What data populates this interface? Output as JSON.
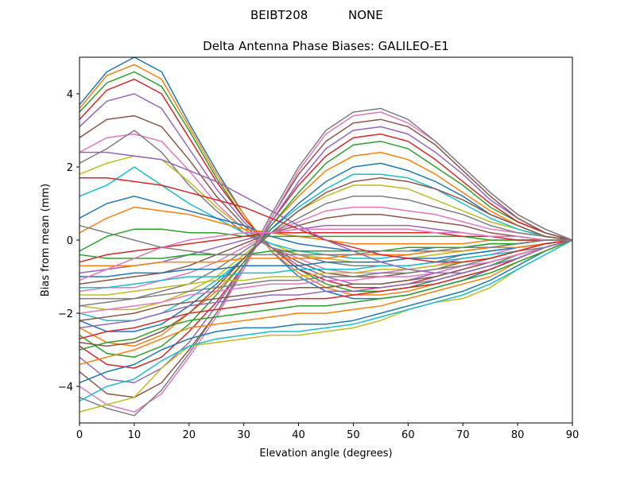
{
  "chart_data": {
    "type": "line",
    "suptitle_left": "BEIBT208",
    "suptitle_right": "NONE",
    "title": "Delta Antenna Phase Biases: GALILEO-E1",
    "xlabel": "Elevation angle (degrees)",
    "ylabel": "Bias from mean (mm)",
    "xlim": [
      0,
      90
    ],
    "ylim": [
      -5,
      5
    ],
    "xticks": [
      0,
      10,
      20,
      30,
      40,
      50,
      60,
      70,
      80,
      90
    ],
    "yticks": [
      -4,
      -2,
      0,
      2,
      4
    ],
    "x": [
      0,
      5,
      10,
      15,
      20,
      25,
      30,
      35,
      40,
      45,
      50,
      55,
      60,
      65,
      70,
      75,
      80,
      85,
      90
    ],
    "series": [
      {
        "name": "s1",
        "values": [
          3.7,
          4.6,
          5.0,
          4.6,
          3.2,
          1.9,
          0.7,
          -0.3,
          -1.0,
          -1.4,
          -1.6,
          -1.6,
          -1.5,
          -1.3,
          -1.1,
          -0.8,
          -0.5,
          -0.2,
          0.0
        ]
      },
      {
        "name": "s2",
        "values": [
          3.6,
          4.5,
          4.8,
          4.4,
          3.1,
          1.8,
          0.7,
          -0.3,
          -0.9,
          -1.3,
          -1.5,
          -1.5,
          -1.4,
          -1.2,
          -1.0,
          -0.8,
          -0.5,
          -0.2,
          0.0
        ]
      },
      {
        "name": "s3",
        "values": [
          3.5,
          4.3,
          4.6,
          4.2,
          3.0,
          1.7,
          0.6,
          -0.2,
          -0.8,
          -1.2,
          -1.4,
          -1.4,
          -1.3,
          -1.1,
          -0.9,
          -0.7,
          -0.4,
          -0.2,
          0.0
        ]
      },
      {
        "name": "s4",
        "values": [
          3.3,
          4.1,
          4.4,
          4.0,
          2.8,
          1.6,
          0.6,
          -0.2,
          -0.8,
          -1.1,
          -1.3,
          -1.3,
          -1.2,
          -1.0,
          -0.8,
          -0.6,
          -0.4,
          -0.2,
          0.0
        ]
      },
      {
        "name": "s5",
        "values": [
          3.1,
          3.8,
          4.0,
          3.6,
          2.5,
          1.4,
          0.5,
          -0.2,
          -0.7,
          -1.0,
          -1.2,
          -1.2,
          -1.1,
          -0.9,
          -0.7,
          -0.5,
          -0.3,
          -0.1,
          0.0
        ]
      },
      {
        "name": "s6",
        "values": [
          2.8,
          3.3,
          3.4,
          3.1,
          2.2,
          1.2,
          0.4,
          -0.2,
          -0.6,
          -0.9,
          -1.0,
          -1.0,
          -0.9,
          -0.8,
          -0.6,
          -0.5,
          -0.3,
          -0.1,
          0.0
        ]
      },
      {
        "name": "s7",
        "values": [
          2.4,
          2.8,
          2.9,
          2.7,
          1.9,
          1.0,
          0.3,
          -0.2,
          -0.5,
          -0.8,
          -0.9,
          -0.9,
          -0.8,
          -0.7,
          -0.5,
          -0.4,
          -0.2,
          -0.1,
          0.0
        ]
      },
      {
        "name": "s8",
        "values": [
          2.1,
          2.5,
          3.0,
          2.4,
          1.5,
          0.8,
          0.2,
          -0.2,
          -0.4,
          -0.6,
          -0.7,
          -0.7,
          -0.7,
          -0.6,
          -0.4,
          -0.3,
          -0.2,
          -0.1,
          0.0
        ]
      },
      {
        "name": "s9",
        "values": [
          1.8,
          2.1,
          2.3,
          2.2,
          1.6,
          0.9,
          0.3,
          -0.1,
          -0.4,
          -0.5,
          -0.6,
          -0.6,
          -0.5,
          -0.4,
          -0.3,
          -0.2,
          -0.1,
          0.0,
          0.0
        ]
      },
      {
        "name": "s10",
        "values": [
          1.2,
          1.5,
          2.0,
          1.5,
          1.0,
          0.6,
          0.2,
          -0.1,
          -0.3,
          -0.4,
          -0.5,
          -0.5,
          -0.4,
          -0.3,
          -0.3,
          -0.2,
          -0.1,
          0.0,
          0.0
        ]
      },
      {
        "name": "s11",
        "values": [
          0.6,
          1.0,
          1.2,
          1.0,
          0.8,
          0.6,
          0.4,
          0.1,
          -0.1,
          -0.2,
          -0.3,
          -0.3,
          -0.3,
          -0.2,
          -0.2,
          -0.1,
          -0.1,
          0.0,
          0.0
        ]
      },
      {
        "name": "s12",
        "values": [
          0.2,
          0.6,
          0.9,
          0.8,
          0.7,
          0.5,
          0.3,
          0.2,
          0.1,
          0.0,
          -0.1,
          -0.1,
          -0.1,
          -0.1,
          -0.1,
          0.0,
          0.0,
          0.0,
          0.0
        ]
      },
      {
        "name": "s13",
        "values": [
          -0.3,
          0.1,
          0.3,
          0.3,
          0.2,
          0.2,
          0.1,
          0.1,
          0.1,
          0.1,
          0.1,
          0.1,
          0.1,
          0.1,
          0.1,
          0.0,
          0.0,
          0.0,
          0.0
        ]
      },
      {
        "name": "s14",
        "values": [
          -0.6,
          -0.4,
          -0.3,
          -0.2,
          -0.1,
          0.0,
          0.1,
          0.2,
          0.2,
          0.2,
          0.2,
          0.2,
          0.2,
          0.2,
          0.1,
          0.1,
          0.0,
          0.0,
          0.0
        ]
      },
      {
        "name": "s15",
        "values": [
          -0.9,
          -0.8,
          -0.7,
          -0.6,
          -0.4,
          -0.2,
          0.0,
          0.2,
          0.3,
          0.4,
          0.4,
          0.4,
          0.4,
          0.3,
          0.2,
          0.1,
          0.1,
          0.0,
          0.0
        ]
      },
      {
        "name": "s16",
        "values": [
          -1.2,
          -1.1,
          -1.0,
          -0.9,
          -0.7,
          -0.4,
          -0.1,
          0.2,
          0.4,
          0.6,
          0.7,
          0.7,
          0.6,
          0.5,
          0.4,
          0.2,
          0.1,
          0.0,
          0.0
        ]
      },
      {
        "name": "s17",
        "values": [
          -1.4,
          -1.3,
          -1.3,
          -1.1,
          -0.9,
          -0.6,
          -0.2,
          0.2,
          0.5,
          0.8,
          0.9,
          0.9,
          0.8,
          0.7,
          0.5,
          0.3,
          0.2,
          0.1,
          0.0
        ]
      },
      {
        "name": "s18",
        "values": [
          -1.6,
          -1.6,
          -1.6,
          -1.4,
          -1.2,
          -0.8,
          -0.3,
          0.2,
          0.6,
          1.0,
          1.2,
          1.2,
          1.1,
          0.9,
          0.7,
          0.4,
          0.2,
          0.1,
          0.0
        ]
      },
      {
        "name": "s19",
        "values": [
          -1.8,
          -1.9,
          -1.9,
          -1.7,
          -1.4,
          -1.0,
          -0.4,
          0.2,
          0.8,
          1.2,
          1.5,
          1.5,
          1.4,
          1.1,
          0.8,
          0.5,
          0.3,
          0.1,
          0.0
        ]
      },
      {
        "name": "s20",
        "values": [
          -2.0,
          -2.2,
          -2.2,
          -2.0,
          -1.6,
          -1.1,
          -0.5,
          0.3,
          0.9,
          1.4,
          1.8,
          1.8,
          1.7,
          1.4,
          1.0,
          0.6,
          0.3,
          0.1,
          0.0
        ]
      },
      {
        "name": "s21",
        "values": [
          -2.2,
          -2.5,
          -2.5,
          -2.3,
          -1.8,
          -1.2,
          -0.5,
          0.3,
          1.0,
          1.6,
          2.0,
          2.1,
          1.9,
          1.6,
          1.2,
          0.7,
          0.4,
          0.1,
          0.0
        ]
      },
      {
        "name": "s22",
        "values": [
          -2.4,
          -2.8,
          -2.9,
          -2.6,
          -2.0,
          -1.4,
          -0.6,
          0.4,
          1.2,
          1.9,
          2.3,
          2.4,
          2.2,
          1.8,
          1.3,
          0.8,
          0.4,
          0.1,
          0.0
        ]
      },
      {
        "name": "s23",
        "values": [
          -2.6,
          -3.1,
          -3.2,
          -2.9,
          -2.3,
          -1.5,
          -0.6,
          0.4,
          1.3,
          2.1,
          2.6,
          2.7,
          2.5,
          2.0,
          1.5,
          0.9,
          0.5,
          0.2,
          0.0
        ]
      },
      {
        "name": "s24",
        "values": [
          -2.9,
          -3.4,
          -3.5,
          -3.2,
          -2.5,
          -1.7,
          -0.7,
          0.5,
          1.5,
          2.3,
          2.8,
          2.9,
          2.7,
          2.2,
          1.6,
          1.0,
          0.5,
          0.2,
          0.0
        ]
      },
      {
        "name": "s25",
        "values": [
          -3.2,
          -3.8,
          -3.9,
          -3.5,
          -2.8,
          -1.8,
          -0.7,
          0.5,
          1.6,
          2.5,
          3.0,
          3.1,
          2.9,
          2.4,
          1.8,
          1.1,
          0.6,
          0.2,
          0.0
        ]
      },
      {
        "name": "s26",
        "values": [
          -3.6,
          -4.2,
          -4.3,
          -3.9,
          -3.0,
          -2.0,
          -0.8,
          0.6,
          1.8,
          2.7,
          3.2,
          3.3,
          3.1,
          2.6,
          1.9,
          1.2,
          0.6,
          0.2,
          0.0
        ]
      },
      {
        "name": "s27",
        "values": [
          -4.0,
          -4.5,
          -4.7,
          -4.2,
          -3.2,
          -2.1,
          -0.8,
          0.6,
          1.9,
          2.9,
          3.4,
          3.5,
          3.2,
          2.7,
          2.0,
          1.3,
          0.7,
          0.3,
          0.0
        ]
      },
      {
        "name": "s28",
        "values": [
          -4.3,
          -4.6,
          -4.8,
          -4.1,
          -3.1,
          -2.0,
          -0.7,
          0.7,
          2.0,
          3.0,
          3.5,
          3.6,
          3.3,
          2.7,
          2.0,
          1.3,
          0.7,
          0.3,
          0.0
        ]
      },
      {
        "name": "s29",
        "values": [
          -4.7,
          -4.5,
          -4.3,
          -3.5,
          -2.9,
          -2.8,
          -2.7,
          -2.6,
          -2.6,
          -2.5,
          -2.4,
          -2.2,
          -1.9,
          -1.7,
          -1.6,
          -1.3,
          -0.8,
          -0.4,
          0.0
        ]
      },
      {
        "name": "s30",
        "values": [
          -4.4,
          -4.0,
          -3.8,
          -3.3,
          -2.9,
          -2.7,
          -2.6,
          -2.5,
          -2.5,
          -2.4,
          -2.3,
          -2.1,
          -1.9,
          -1.7,
          -1.5,
          -1.2,
          -0.8,
          -0.4,
          0.0
        ]
      },
      {
        "name": "s31",
        "values": [
          -3.9,
          -3.6,
          -3.4,
          -3.0,
          -2.7,
          -2.5,
          -2.4,
          -2.4,
          -2.3,
          -2.3,
          -2.2,
          -2.0,
          -1.8,
          -1.6,
          -1.4,
          -1.1,
          -0.7,
          -0.3,
          0.0
        ]
      },
      {
        "name": "s32",
        "values": [
          -3.4,
          -3.2,
          -3.0,
          -2.7,
          -2.4,
          -2.3,
          -2.2,
          -2.1,
          -2.0,
          -2.0,
          -1.9,
          -1.8,
          -1.6,
          -1.4,
          -1.2,
          -1.0,
          -0.6,
          -0.3,
          0.0
        ]
      },
      {
        "name": "s33",
        "values": [
          -3.0,
          -2.8,
          -2.7,
          -2.4,
          -2.2,
          -2.1,
          -2.0,
          -1.9,
          -1.8,
          -1.8,
          -1.7,
          -1.6,
          -1.5,
          -1.3,
          -1.1,
          -0.9,
          -0.6,
          -0.3,
          0.0
        ]
      },
      {
        "name": "s34",
        "values": [
          -2.7,
          -2.5,
          -2.4,
          -2.2,
          -2.0,
          -1.9,
          -1.8,
          -1.7,
          -1.6,
          -1.6,
          -1.5,
          -1.4,
          -1.3,
          -1.2,
          -1.0,
          -0.8,
          -0.5,
          -0.2,
          0.0
        ]
      },
      {
        "name": "s35",
        "values": [
          -2.4,
          -2.3,
          -2.2,
          -2.0,
          -1.8,
          -1.7,
          -1.6,
          -1.5,
          -1.5,
          -1.4,
          -1.4,
          -1.3,
          -1.2,
          -1.1,
          -0.9,
          -0.7,
          -0.5,
          -0.2,
          0.0
        ]
      },
      {
        "name": "s36",
        "values": [
          -2.2,
          -2.1,
          -2.0,
          -1.8,
          -1.7,
          -1.6,
          -1.5,
          -1.4,
          -1.3,
          -1.3,
          -1.2,
          -1.2,
          -1.1,
          -1.0,
          -0.8,
          -0.6,
          -0.4,
          -0.2,
          0.0
        ]
      },
      {
        "name": "s37",
        "values": [
          -2.0,
          -1.9,
          -1.8,
          -1.7,
          -1.5,
          -1.4,
          -1.3,
          -1.2,
          -1.2,
          -1.1,
          -1.1,
          -1.0,
          -1.0,
          -0.9,
          -0.7,
          -0.6,
          -0.4,
          -0.2,
          0.0
        ]
      },
      {
        "name": "s38",
        "values": [
          -1.8,
          -1.7,
          -1.6,
          -1.5,
          -1.4,
          -1.3,
          -1.2,
          -1.1,
          -1.1,
          -1.0,
          -1.0,
          -0.9,
          -0.9,
          -0.8,
          -0.7,
          -0.5,
          -0.3,
          -0.2,
          0.0
        ]
      },
      {
        "name": "s39",
        "values": [
          -1.5,
          -1.5,
          -1.4,
          -1.3,
          -1.2,
          -1.1,
          -1.1,
          -1.0,
          -1.0,
          -0.9,
          -0.9,
          -0.8,
          -0.8,
          -0.7,
          -0.6,
          -0.5,
          -0.3,
          -0.1,
          0.0
        ]
      },
      {
        "name": "s40",
        "values": [
          -1.3,
          -1.3,
          -1.2,
          -1.1,
          -1.0,
          -1.0,
          -0.9,
          -0.9,
          -0.8,
          -0.8,
          -0.8,
          -0.7,
          -0.7,
          -0.6,
          -0.5,
          -0.4,
          -0.3,
          -0.1,
          0.0
        ]
      },
      {
        "name": "s41",
        "values": [
          -1.0,
          -1.0,
          -0.9,
          -0.9,
          -0.8,
          -0.8,
          -0.7,
          -0.7,
          -0.7,
          -0.6,
          -0.6,
          -0.6,
          -0.5,
          -0.5,
          -0.4,
          -0.3,
          -0.2,
          -0.1,
          0.0
        ]
      },
      {
        "name": "s42",
        "values": [
          -0.7,
          -0.7,
          -0.7,
          -0.6,
          -0.6,
          -0.6,
          -0.5,
          -0.5,
          -0.5,
          -0.5,
          -0.4,
          -0.4,
          -0.4,
          -0.3,
          -0.3,
          -0.2,
          -0.2,
          -0.1,
          0.0
        ]
      },
      {
        "name": "s43",
        "values": [
          -0.4,
          -0.5,
          -0.5,
          -0.5,
          -0.4,
          -0.4,
          -0.4,
          -0.3,
          -0.3,
          -0.3,
          -0.3,
          -0.3,
          -0.2,
          -0.2,
          -0.2,
          -0.1,
          -0.1,
          0.0,
          0.0
        ]
      },
      {
        "name": "s44",
        "values": [
          1.7,
          1.7,
          1.6,
          1.5,
          1.3,
          1.1,
          0.9,
          0.6,
          0.3,
          0.0,
          -0.2,
          -0.4,
          -0.5,
          -0.6,
          -0.6,
          -0.5,
          -0.3,
          -0.1,
          0.0
        ]
      },
      {
        "name": "s45",
        "values": [
          2.4,
          2.4,
          2.3,
          2.2,
          1.9,
          1.6,
          1.2,
          0.8,
          0.4,
          0.0,
          -0.3,
          -0.6,
          -0.8,
          -0.9,
          -0.9,
          -0.7,
          -0.5,
          -0.2,
          0.0
        ]
      },
      {
        "name": "s46",
        "values": [
          -2.8,
          -2.9,
          -2.8,
          -2.5,
          -2.0,
          -1.3,
          -0.5,
          0.2,
          0.8,
          1.3,
          1.6,
          1.7,
          1.6,
          1.4,
          1.1,
          0.7,
          0.4,
          0.1,
          0.0
        ]
      },
      {
        "name": "s47",
        "values": [
          -1.1,
          -0.8,
          -0.5,
          -0.2,
          0.0,
          0.1,
          0.2,
          0.2,
          0.3,
          0.3,
          0.3,
          0.3,
          0.3,
          0.2,
          0.2,
          0.1,
          0.1,
          0.0,
          0.0
        ]
      },
      {
        "name": "s48",
        "values": [
          0.4,
          0.2,
          0.0,
          -0.2,
          -0.3,
          -0.4,
          -0.4,
          -0.4,
          -0.4,
          -0.4,
          -0.4,
          -0.3,
          -0.3,
          -0.3,
          -0.2,
          -0.2,
          -0.1,
          0.0,
          0.0
        ]
      }
    ],
    "colors": [
      "#1f77b4",
      "#ff7f0e",
      "#2ca02c",
      "#d62728",
      "#9467bd",
      "#8c564b",
      "#e377c2",
      "#7f7f7f",
      "#bcbd22",
      "#17becf"
    ]
  }
}
